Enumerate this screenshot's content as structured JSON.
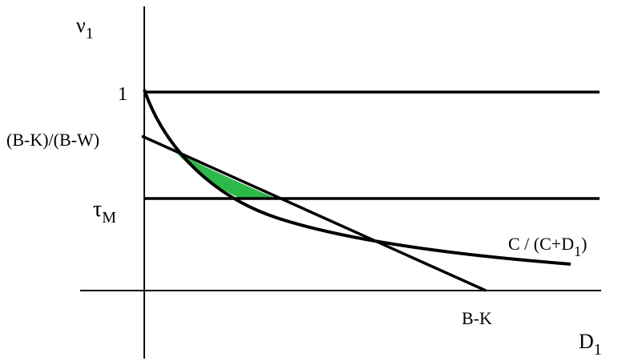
{
  "labels": {
    "y_axis_var": "ν",
    "y_axis_sub": "1",
    "x_axis_var": "D",
    "x_axis_sub": "1",
    "one": "1",
    "intercept": "(B-K)/(B-W)",
    "tau_var": "τ",
    "tau_sub": "M",
    "bk": "B-K",
    "curve_pre": "C / (C+D",
    "curve_sub": "1",
    "curve_post": ")"
  },
  "colors": {
    "line": "#000000",
    "shaded_region": "#2db84a"
  }
}
